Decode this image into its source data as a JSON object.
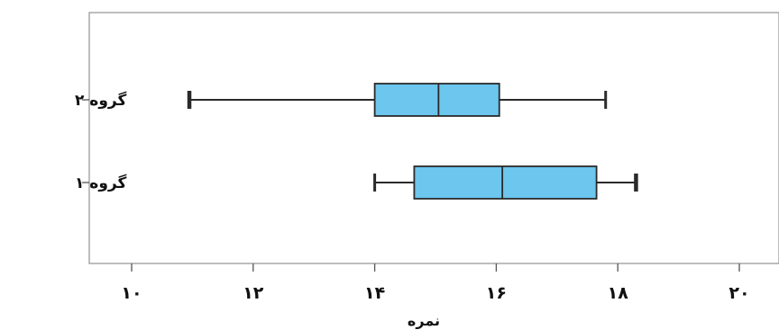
{
  "chart_data": {
    "type": "boxplot",
    "orientation": "horizontal",
    "xlabel": "نمره",
    "xlim": [
      9.4,
      21
    ],
    "xticks": [
      10,
      12,
      14,
      16,
      18,
      20
    ],
    "xtick_labels": [
      "۱۰",
      "۱۲",
      "۱۴",
      "۱۶",
      "۱۸",
      "۲۰"
    ],
    "categories": [
      "گروه ۲",
      "گروه ۱"
    ],
    "series": [
      {
        "category": "گروه ۲",
        "min": 10.95,
        "q1": 14.0,
        "median": 15.05,
        "q3": 16.05,
        "max": 17.8
      },
      {
        "category": "گروه ۱",
        "min": 14.0,
        "q1": 14.65,
        "median": 16.1,
        "q3": 17.65,
        "max": 18.3
      }
    ],
    "box_color": "#6cc6ee",
    "line_color": "#2a2a2a",
    "grid": false
  }
}
